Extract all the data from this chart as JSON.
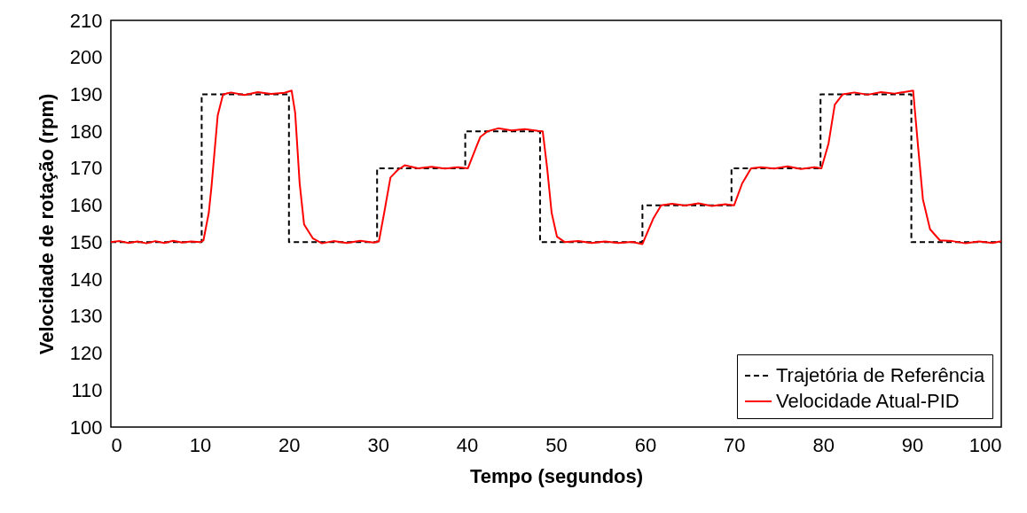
{
  "chart_data": {
    "type": "line",
    "xlabel": "Tempo (segundos)",
    "ylabel": "Velocidade de rotação  (rpm)",
    "xlim": [
      0,
      100
    ],
    "xticks": [
      0,
      10,
      20,
      30,
      40,
      50,
      60,
      70,
      80,
      90,
      100
    ],
    "ylim": [
      100,
      210
    ],
    "yticks": [
      100,
      110,
      120,
      130,
      140,
      150,
      160,
      170,
      180,
      190,
      200,
      210
    ],
    "grid": false,
    "legend": "bottom right",
    "series": [
      {
        "name": "Trajetória de Referência",
        "color": "#000000",
        "line_style": "dashed",
        "x": [
          0,
          10.2,
          10.2,
          20,
          20,
          29.9,
          29.9,
          39.8,
          39.8,
          48.2,
          48.2,
          59.7,
          59.7,
          69.7,
          69.7,
          79.7,
          79.7,
          89.9,
          89.9,
          100
        ],
        "values": [
          150,
          150,
          190,
          190,
          150,
          150,
          170,
          170,
          180,
          180,
          150,
          150,
          160,
          160,
          170,
          170,
          190,
          190,
          150,
          150
        ]
      },
      {
        "name": "Velocidade Atual-PID",
        "color": "#ff0000",
        "line_style": "solid",
        "x": [
          0,
          1,
          2,
          3,
          4,
          5,
          6,
          7,
          8,
          9,
          10,
          10.4,
          11,
          11.3,
          12,
          12.6,
          13.5,
          15,
          16.5,
          18,
          19.5,
          20.3,
          20.7,
          21.2,
          21.7,
          22.7,
          23.7,
          25,
          26.5,
          28,
          29.5,
          30.1,
          30.7,
          31.4,
          32.2,
          33,
          34.5,
          36,
          37.5,
          39,
          40.1,
          41,
          41.5,
          42.3,
          43.5,
          45,
          46.5,
          48,
          48.5,
          49,
          49.5,
          50.1,
          51,
          52.5,
          54,
          55.5,
          57,
          58.5,
          59.7,
          60.9,
          61.8,
          63,
          64.5,
          66,
          67.5,
          69,
          70,
          70.9,
          71.9,
          73,
          74.5,
          76,
          77.5,
          79,
          79.8,
          80.6,
          81.3,
          82.2,
          83.5,
          85,
          86.5,
          88,
          90.1,
          90.7,
          91.2,
          92,
          93.1,
          94.5,
          96,
          97.5,
          99,
          100
        ],
        "values": [
          150,
          150.3,
          149.8,
          150.2,
          149.7,
          150.3,
          149.8,
          150.4,
          149.9,
          150.2,
          150,
          150.5,
          158,
          165,
          184.3,
          190,
          190.5,
          189.8,
          190.6,
          190.1,
          190.4,
          191,
          185,
          166,
          154.8,
          151,
          149.7,
          150.3,
          149.8,
          150.4,
          149.9,
          150.2,
          158,
          167.5,
          169.5,
          170.8,
          170,
          170.4,
          169.9,
          170.3,
          170,
          175.5,
          178.5,
          180,
          180.8,
          180.2,
          180.6,
          180.1,
          180,
          170,
          158,
          151.5,
          150,
          150.3,
          149.8,
          150.2,
          149.8,
          150.1,
          149.5,
          156.3,
          160,
          160.4,
          159.9,
          160.5,
          159.8,
          160.3,
          160,
          165.9,
          170,
          170.3,
          169.9,
          170.5,
          169.8,
          170.3,
          170,
          176.7,
          187.2,
          190,
          190.5,
          189.9,
          190.6,
          190.2,
          191,
          174.7,
          161.6,
          153.5,
          150.5,
          150.3,
          149.7,
          150.2,
          149.8,
          150.3
        ]
      }
    ]
  }
}
